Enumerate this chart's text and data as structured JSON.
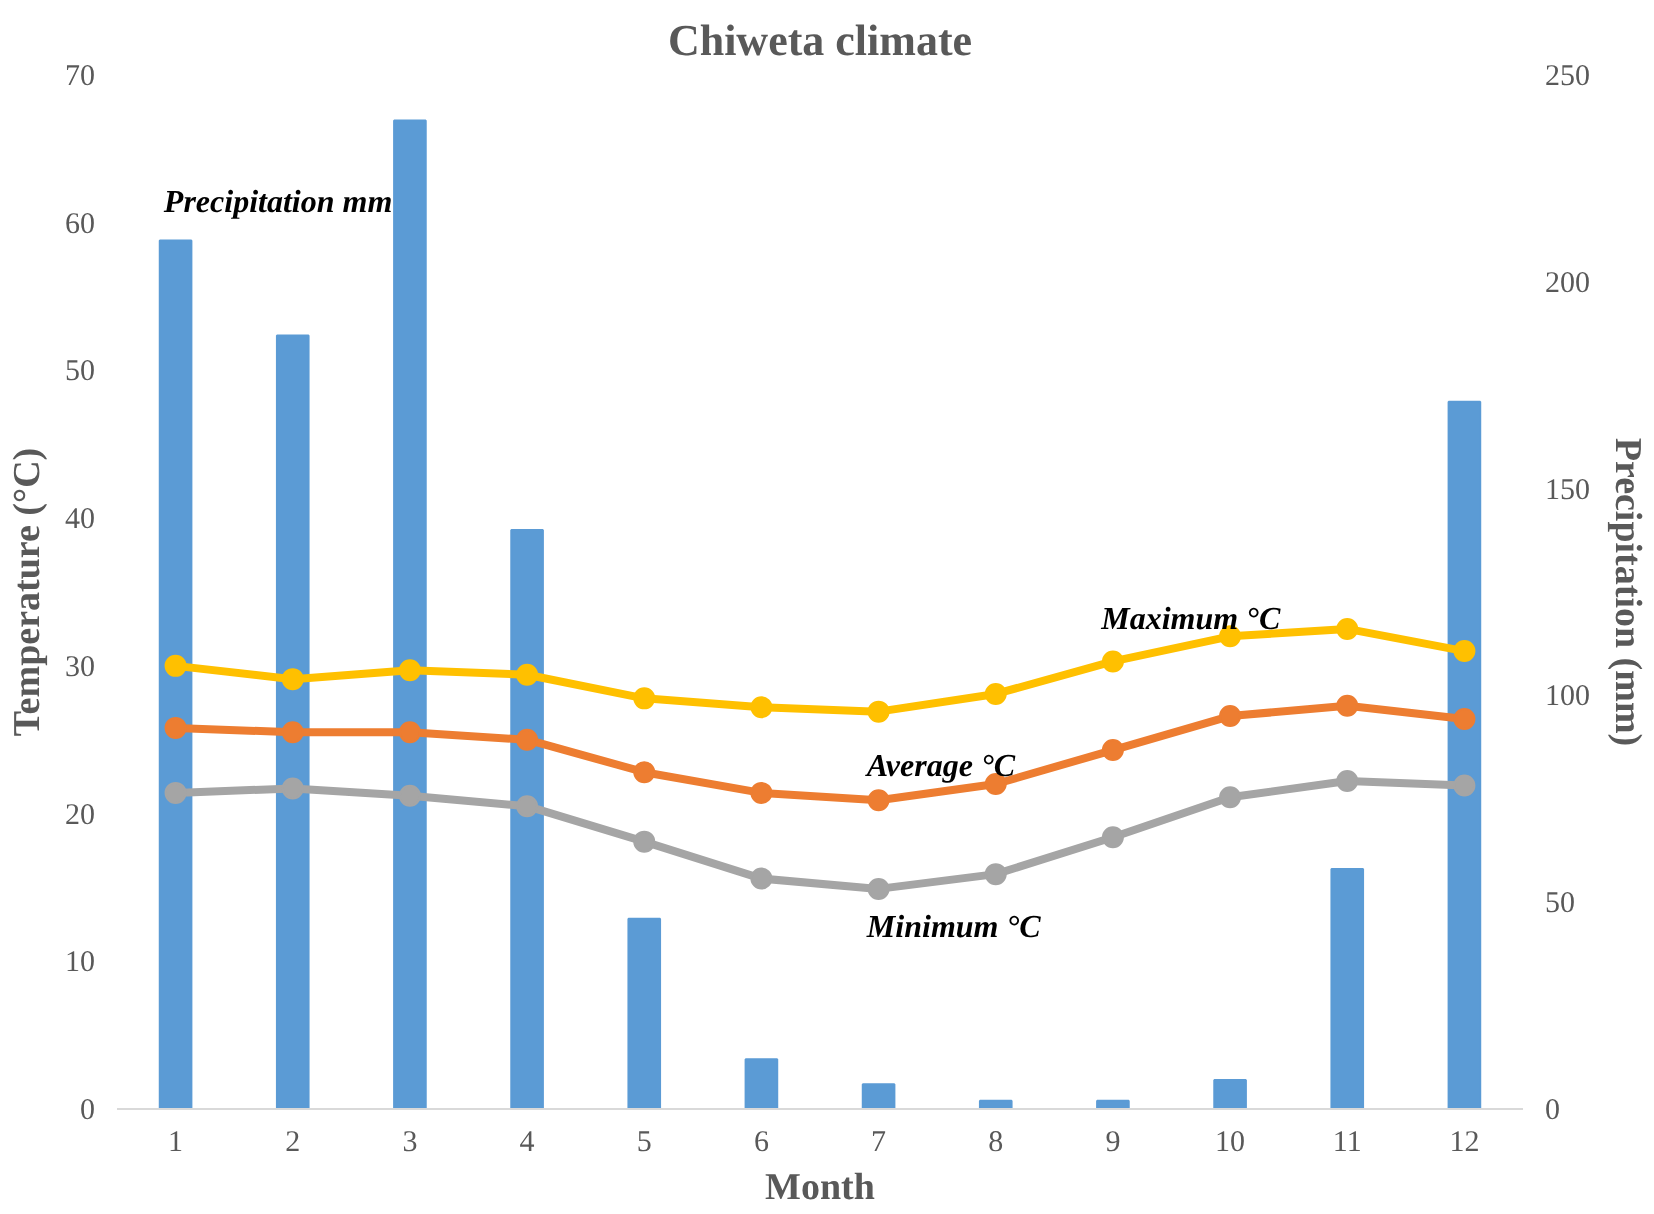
{
  "chart_data": {
    "type": "line",
    "title": "Chiweta climate",
    "xlabel": "Month",
    "ylabel": "Temperature (°C)",
    "y2label": "Precipitation (mm)",
    "x": [
      1,
      2,
      3,
      4,
      5,
      6,
      7,
      8,
      9,
      10,
      11,
      12
    ],
    "xlim": [
      0.5,
      12.5
    ],
    "xticks": [
      1,
      2,
      3,
      4,
      5,
      6,
      7,
      8,
      9,
      10,
      11,
      12
    ],
    "series": [
      {
        "name": "Precipitation mm",
        "type": "bar",
        "axis": "y2",
        "color": "#5b9bd5",
        "values": [
          210,
          187,
          239,
          140,
          46,
          12,
          6,
          2,
          2,
          7,
          58,
          171
        ]
      },
      {
        "name": "Maximum °C",
        "color": "#ffc000",
        "values": [
          30.0,
          29.1,
          29.7,
          29.4,
          27.8,
          27.2,
          26.9,
          28.1,
          30.3,
          32.0,
          32.5,
          31.0
        ]
      },
      {
        "name": "Average °C",
        "color": "#ed7d31",
        "values": [
          25.8,
          25.5,
          25.5,
          25.0,
          22.8,
          21.4,
          20.9,
          22.0,
          24.3,
          26.6,
          27.3,
          26.4
        ]
      },
      {
        "name": "Minimum °C",
        "color": "#a5a5a5",
        "values": [
          21.4,
          21.7,
          21.2,
          20.5,
          18.1,
          15.6,
          14.9,
          15.9,
          18.4,
          21.1,
          22.2,
          21.9
        ]
      }
    ],
    "ylim": [
      0,
      70
    ],
    "yticks": [
      0,
      10,
      20,
      30,
      40,
      50,
      60,
      70
    ],
    "y2lim": [
      0,
      250
    ],
    "y2ticks": [
      0,
      50,
      100,
      150,
      200,
      250
    ],
    "marker": "circle",
    "grid": false
  }
}
